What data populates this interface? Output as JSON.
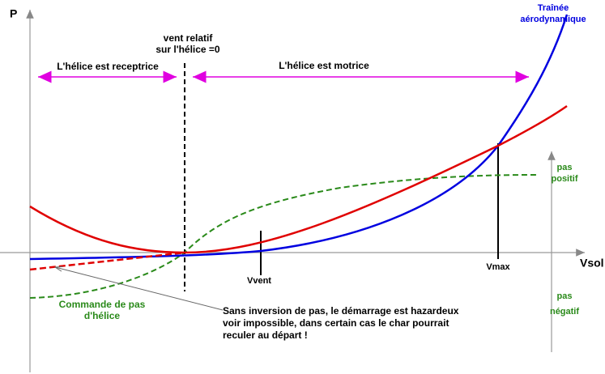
{
  "axes": {
    "y_label": "P",
    "x_label": "Vsol"
  },
  "curves": {
    "drag": [
      "Traînée",
      "aérodynamique"
    ],
    "pitch": [
      "Commande de pas",
      "d'hélice"
    ]
  },
  "markers": {
    "wind_zero": [
      "vent relatif",
      "sur l'hélice =0"
    ],
    "vvent": "Vvent",
    "vmax": "Vmax"
  },
  "zones": {
    "receiving": "L'hélice est receptrice",
    "driving": "L'hélice est motrice"
  },
  "pitch_scale": {
    "positive": [
      "pas",
      "positif"
    ],
    "negative": [
      "pas",
      "négatif"
    ]
  },
  "note": [
    "Sans inversion de pas, le démarrage est hazardeux",
    "voir impossible, dans certain cas le char pourrait",
    "reculer au départ !"
  ]
}
